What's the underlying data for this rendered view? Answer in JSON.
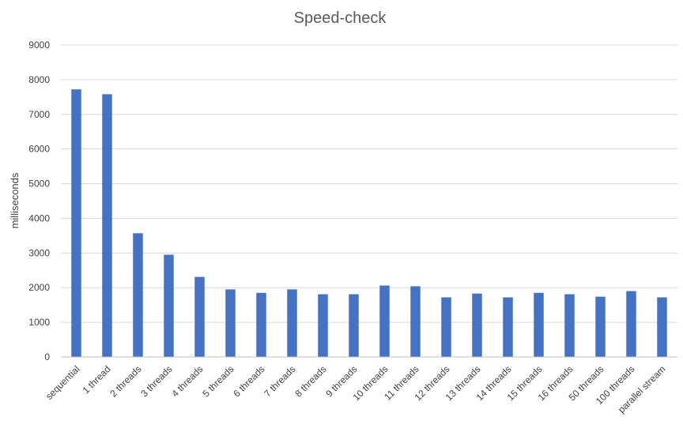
{
  "chart_data": {
    "type": "bar",
    "title": "Speed-check",
    "xlabel": "",
    "ylabel": "milliseconds",
    "ylim": [
      0,
      9000
    ],
    "yticks": [
      0,
      1000,
      2000,
      3000,
      4000,
      5000,
      6000,
      7000,
      8000,
      9000
    ],
    "grid": true,
    "legend": "none",
    "bar_color": "#4472C4",
    "categories": [
      "sequential",
      "1 thread",
      "2 threads",
      "3 threads",
      "4 threads",
      "5 threads",
      "6 threads",
      "7 threads",
      "8 threads",
      "9 threads",
      "10 threads",
      "11 threads",
      "12 threads",
      "13 threads",
      "14 threads",
      "15 threads",
      "16 threads",
      "50 threads",
      "100 threads",
      "parallel stream"
    ],
    "values": [
      7720,
      7580,
      3570,
      2950,
      2310,
      1950,
      1850,
      1950,
      1810,
      1810,
      2060,
      2040,
      1720,
      1830,
      1720,
      1850,
      1810,
      1740,
      1900,
      1720
    ]
  }
}
